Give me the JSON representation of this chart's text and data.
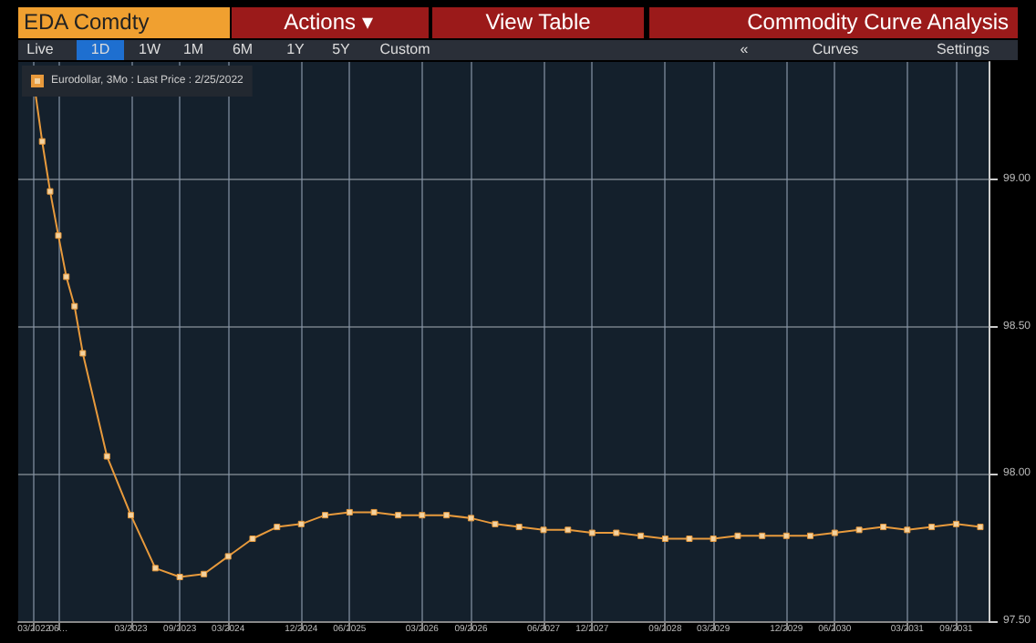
{
  "chart_data": {
    "type": "line",
    "title": "EDA Comdty",
    "annotations": [
      "Actions ▾",
      "View Table",
      "Commodity Curve Analysis",
      "Live",
      "1D",
      "1W",
      "1M",
      "6M",
      "1Y",
      "5Y",
      "Custom",
      "«",
      "Curves",
      "Settings"
    ],
    "x": [
      "2022-03",
      "2022-04",
      "2022-05",
      "2022-06",
      "2022-07",
      "2022-08",
      "2022-09",
      "2022-12",
      "2023-03",
      "2023-06",
      "2023-09",
      "2023-12",
      "2024-03",
      "2024-06",
      "2024-09",
      "2024-12",
      "2025-03",
      "2025-06",
      "2025-09",
      "2025-12",
      "2026-03",
      "2026-06",
      "2026-09",
      "2026-12",
      "2027-03",
      "2027-06",
      "2027-09",
      "2027-12",
      "2028-03",
      "2028-06",
      "2028-09",
      "2028-12",
      "2029-03",
      "2029-06",
      "2029-09",
      "2029-12",
      "2030-03",
      "2030-06",
      "2030-09",
      "2030-12",
      "2031-03",
      "2031-06",
      "2031-09",
      "2031-12"
    ],
    "series": [
      {
        "name": "Eurodollar, 3Mo : Last Price : 2/25/2022",
        "color": "#e89a3c",
        "values": [
          99.33,
          99.13,
          98.96,
          98.81,
          98.67,
          98.57,
          98.41,
          98.06,
          97.86,
          97.68,
          97.65,
          97.66,
          97.72,
          97.78,
          97.82,
          97.83,
          97.86,
          97.87,
          97.87,
          97.86,
          97.86,
          97.86,
          97.85,
          97.83,
          97.82,
          97.81,
          97.81,
          97.8,
          97.8,
          97.79,
          97.78,
          97.78,
          97.78,
          97.79,
          97.79,
          97.79,
          97.79,
          97.8,
          97.81,
          97.82,
          97.81,
          97.82,
          97.83,
          97.82
        ]
      }
    ],
    "xlim": [
      "2022-01",
      "2032-01"
    ],
    "xticks": [
      {
        "value": "2022-03",
        "label": "03/2022"
      },
      {
        "value": "2022-06",
        "label": "06…"
      },
      {
        "value": "2023-03",
        "label": "03/2023"
      },
      {
        "value": "2023-09",
        "label": "09/2023"
      },
      {
        "value": "2024-03",
        "label": "03/2024"
      },
      {
        "value": "2024-12",
        "label": "12/2024"
      },
      {
        "value": "2025-06",
        "label": "06/2025"
      },
      {
        "value": "2026-03",
        "label": "03/2026"
      },
      {
        "value": "2026-09",
        "label": "09/2026"
      },
      {
        "value": "2027-06",
        "label": "06/2027"
      },
      {
        "value": "2027-12",
        "label": "12/2027"
      },
      {
        "value": "2028-09",
        "label": "09/2028"
      },
      {
        "value": "2029-03",
        "label": "03/2029"
      },
      {
        "value": "2029-12",
        "label": "12/2029"
      },
      {
        "value": "2030-06",
        "label": "06/2030"
      },
      {
        "value": "2031-03",
        "label": "03/2031"
      },
      {
        "value": "2031-09",
        "label": "09/2031"
      }
    ],
    "ylim": [
      97.5,
      99.4
    ],
    "yticks": [
      {
        "value": 97.5,
        "label": "97.50"
      },
      {
        "value": 98,
        "label": "98.00"
      },
      {
        "value": 98.5,
        "label": "98.50"
      },
      {
        "value": 99,
        "label": "99.00"
      }
    ],
    "grid": true,
    "legend": "top left",
    "marker": "square",
    "line_style": "solid"
  }
}
